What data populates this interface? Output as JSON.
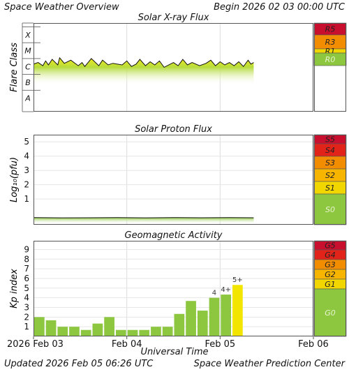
{
  "header": {
    "title": "Space Weather Overview",
    "begin_label": "Begin",
    "begin_value": "2026 02 03 00:00 UTC"
  },
  "footer": {
    "updated_label": "Updated",
    "updated_value": "2026 Feb 05 06:26 UTC",
    "source": "Space Weather Prediction Center"
  },
  "xaxis": {
    "label": "Universal Time",
    "ticks": [
      {
        "day": 0,
        "label": "2026 Feb 03"
      },
      {
        "day": 1,
        "label": "Feb 04"
      },
      {
        "day": 2,
        "label": "Feb 05"
      },
      {
        "day": 3,
        "label": "Feb 06"
      }
    ],
    "range_days": [
      0,
      3
    ]
  },
  "scales": {
    "radio": [
      {
        "label": "R5",
        "color": "#c8102e"
      },
      {
        "label": "R3",
        "color": "#f28c00"
      },
      {
        "label": "R1",
        "color": "#f2d600"
      },
      {
        "label": "R0",
        "color": "#8dc63f"
      }
    ],
    "solar_radiation": [
      {
        "label": "S5",
        "color": "#c8102e"
      },
      {
        "label": "S4",
        "color": "#e2231a"
      },
      {
        "label": "S3",
        "color": "#f28c00"
      },
      {
        "label": "S2",
        "color": "#f7b500"
      },
      {
        "label": "S1",
        "color": "#f2d600"
      },
      {
        "label": "S0",
        "color": "#8dc63f"
      }
    ],
    "geomagnetic": [
      {
        "label": "G5",
        "color": "#c8102e"
      },
      {
        "label": "G4",
        "color": "#e2231a"
      },
      {
        "label": "G3",
        "color": "#f28c00"
      },
      {
        "label": "G2",
        "color": "#f7b500"
      },
      {
        "label": "G1",
        "color": "#f2d600"
      },
      {
        "label": "G0",
        "color": "#8dc63f"
      }
    ]
  },
  "chart_data": [
    {
      "type": "area",
      "title": "Solar X-ray Flux",
      "ylabel": "Flare Class",
      "y_classes": [
        "X",
        "M",
        "C",
        "B",
        "A"
      ],
      "x_unit": "days since 2026 Feb 03 00:00 UTC",
      "series": [
        {
          "x": [
            0.0,
            0.05,
            0.1,
            0.13,
            0.16,
            0.2,
            0.26,
            0.28,
            0.33,
            0.4,
            0.48,
            0.52,
            0.55,
            0.62,
            0.7,
            0.74,
            0.8,
            0.85,
            0.95,
            1.0,
            1.05,
            1.1,
            1.14,
            1.2,
            1.25,
            1.3,
            1.35,
            1.4,
            1.5,
            1.55,
            1.6,
            1.65,
            1.7,
            1.78,
            1.85,
            1.9,
            1.95,
            2.0,
            2.05,
            2.1,
            2.15,
            2.2,
            2.25,
            2.3,
            2.33,
            2.36
          ],
          "y_class": [
            2.65,
            2.75,
            2.55,
            2.85,
            2.6,
            2.95,
            2.6,
            3.05,
            2.7,
            2.9,
            2.55,
            2.75,
            2.5,
            3.0,
            2.55,
            2.9,
            2.6,
            2.7,
            2.6,
            2.85,
            2.5,
            2.65,
            2.95,
            2.55,
            2.8,
            2.6,
            2.85,
            2.45,
            2.75,
            2.55,
            2.95,
            2.6,
            2.75,
            2.55,
            2.7,
            2.9,
            2.55,
            2.8,
            2.6,
            2.75,
            2.55,
            2.8,
            2.5,
            2.9,
            2.65,
            2.75
          ]
        }
      ]
    },
    {
      "type": "area",
      "title": "Solar Proton Flux",
      "ylabel": "Log₁₀(pfu)",
      "yticks": [
        1,
        2,
        3,
        4,
        5
      ],
      "ylim": [
        -0.8,
        5.5
      ],
      "series": [
        {
          "x": [
            0.0,
            0.3,
            0.6,
            0.9,
            1.2,
            1.5,
            1.8,
            2.1,
            2.36
          ],
          "values": [
            -0.3,
            -0.32,
            -0.31,
            -0.3,
            -0.32,
            -0.3,
            -0.31,
            -0.3,
            -0.31
          ]
        }
      ]
    },
    {
      "type": "bar",
      "title": "Geomagnetic Activity",
      "ylabel": "Kp index",
      "yticks": [
        1,
        2,
        3,
        4,
        5,
        6,
        7,
        8,
        9
      ],
      "ylim": [
        0,
        9.9
      ],
      "bar_width_hours": 3,
      "bars": [
        {
          "start_day": 0.0,
          "kp": 2.0,
          "label": "",
          "color": "#8dc63f"
        },
        {
          "start_day": 0.125,
          "kp": 1.67,
          "label": "",
          "color": "#8dc63f"
        },
        {
          "start_day": 0.25,
          "kp": 1.0,
          "label": "",
          "color": "#8dc63f"
        },
        {
          "start_day": 0.375,
          "kp": 1.0,
          "label": "",
          "color": "#8dc63f"
        },
        {
          "start_day": 0.5,
          "kp": 0.67,
          "label": "",
          "color": "#8dc63f"
        },
        {
          "start_day": 0.625,
          "kp": 1.33,
          "label": "",
          "color": "#8dc63f"
        },
        {
          "start_day": 0.75,
          "kp": 2.0,
          "label": "",
          "color": "#8dc63f"
        },
        {
          "start_day": 0.875,
          "kp": 0.67,
          "label": "",
          "color": "#8dc63f"
        },
        {
          "start_day": 1.0,
          "kp": 0.67,
          "label": "",
          "color": "#8dc63f"
        },
        {
          "start_day": 1.125,
          "kp": 0.67,
          "label": "",
          "color": "#8dc63f"
        },
        {
          "start_day": 1.25,
          "kp": 1.0,
          "label": "",
          "color": "#8dc63f"
        },
        {
          "start_day": 1.375,
          "kp": 1.0,
          "label": "",
          "color": "#8dc63f"
        },
        {
          "start_day": 1.5,
          "kp": 2.33,
          "label": "",
          "color": "#8dc63f"
        },
        {
          "start_day": 1.625,
          "kp": 3.67,
          "label": "",
          "color": "#8dc63f"
        },
        {
          "start_day": 1.75,
          "kp": 2.67,
          "label": "",
          "color": "#8dc63f"
        },
        {
          "start_day": 1.875,
          "kp": 4.0,
          "label": "4",
          "color": "#8dc63f"
        },
        {
          "start_day": 2.0,
          "kp": 4.33,
          "label": "4+",
          "color": "#8dc63f"
        },
        {
          "start_day": 2.125,
          "kp": 5.33,
          "label": "5+",
          "color": "#f2e600"
        }
      ]
    }
  ]
}
